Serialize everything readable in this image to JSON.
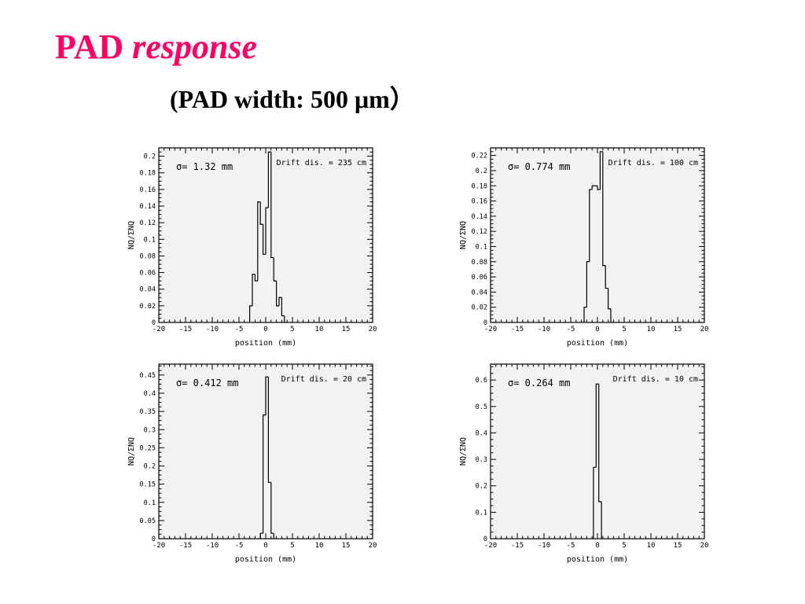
{
  "slide": {
    "title_main": "PAD",
    "title_italic": "response",
    "subtitle": "(PAD width: 500 μm）"
  },
  "chart_data": [
    {
      "type": "bar",
      "style": "step-histogram",
      "xlabel": "position (mm)",
      "ylabel": "NQ/ΣNQ",
      "annotation_sigma": "σ= 1.32 mm",
      "annotation_drift": "Drift dis. = 235 cm",
      "xlim": [
        -20,
        20
      ],
      "ylim": [
        0,
        0.21
      ],
      "x_ticks": [
        -20,
        -15,
        -10,
        -5,
        0,
        5,
        10,
        15,
        20
      ],
      "y_ticks": [
        0,
        0.02,
        0.04,
        0.06,
        0.08,
        0.1,
        0.12,
        0.14,
        0.16,
        0.18,
        0.2
      ],
      "y_tick_labels": [
        "0",
        "0.02",
        "0.04",
        "0.06",
        "0.08",
        "0.1",
        "0.12",
        "0.14",
        "0.16",
        "0.18",
        "0.2"
      ],
      "bins": [
        {
          "x0": -3,
          "x1": -2.5,
          "y": 0.02
        },
        {
          "x0": -2.5,
          "x1": -2,
          "y": 0.058
        },
        {
          "x0": -2,
          "x1": -1.5,
          "y": 0.05
        },
        {
          "x0": -1.5,
          "x1": -1,
          "y": 0.145
        },
        {
          "x0": -1,
          "x1": -0.5,
          "y": 0.118
        },
        {
          "x0": -0.5,
          "x1": 0,
          "y": 0.082
        },
        {
          "x0": 0,
          "x1": 0.5,
          "y": 0.138
        },
        {
          "x0": 0.5,
          "x1": 1,
          "y": 0.205
        },
        {
          "x0": 1,
          "x1": 1.5,
          "y": 0.078
        },
        {
          "x0": 1.5,
          "x1": 2,
          "y": 0.05
        },
        {
          "x0": 2,
          "x1": 2.5,
          "y": 0.02
        },
        {
          "x0": 2.5,
          "x1": 3,
          "y": 0.03
        },
        {
          "x0": 3,
          "x1": 3.5,
          "y": 0.008
        }
      ]
    },
    {
      "type": "bar",
      "style": "step-histogram",
      "xlabel": "position (mm)",
      "ylabel": "NQ/ΣNQ",
      "annotation_sigma": "σ= 0.774 mm",
      "annotation_drift": "Drift dis. = 100 cm",
      "xlim": [
        -20,
        20
      ],
      "ylim": [
        0,
        0.23
      ],
      "x_ticks": [
        -20,
        -15,
        -10,
        -5,
        0,
        5,
        10,
        15,
        20
      ],
      "y_ticks": [
        0,
        0.02,
        0.04,
        0.06,
        0.08,
        0.1,
        0.12,
        0.14,
        0.16,
        0.18,
        0.2,
        0.22
      ],
      "y_tick_labels": [
        "0",
        "0.02",
        "0.04",
        "0.06",
        "0.08",
        "0.1",
        "0.12",
        "0.14",
        "0.16",
        "0.18",
        "0.2",
        "0.22"
      ],
      "bins": [
        {
          "x0": -2.5,
          "x1": -2,
          "y": 0.02
        },
        {
          "x0": -2,
          "x1": -1.5,
          "y": 0.08
        },
        {
          "x0": -1.5,
          "x1": -1,
          "y": 0.175
        },
        {
          "x0": -1,
          "x1": -0.5,
          "y": 0.18
        },
        {
          "x0": -0.5,
          "x1": 0,
          "y": 0.18
        },
        {
          "x0": 0,
          "x1": 0.5,
          "y": 0.175
        },
        {
          "x0": 0.5,
          "x1": 1,
          "y": 0.225
        },
        {
          "x0": 1,
          "x1": 1.5,
          "y": 0.075
        },
        {
          "x0": 1.5,
          "x1": 2,
          "y": 0.045
        },
        {
          "x0": 2,
          "x1": 2.5,
          "y": 0.018
        }
      ]
    },
    {
      "type": "bar",
      "style": "step-histogram",
      "xlabel": "position (mm)",
      "ylabel": "NQ/ΣNQ",
      "annotation_sigma": "σ= 0.412 mm",
      "annotation_drift": "Drift dis. = 20 cm",
      "xlim": [
        -20,
        20
      ],
      "ylim": [
        0,
        0.48
      ],
      "x_ticks": [
        -20,
        -15,
        -10,
        -5,
        0,
        5,
        10,
        15,
        20
      ],
      "y_ticks": [
        0,
        0.05,
        0.1,
        0.15,
        0.2,
        0.25,
        0.3,
        0.35,
        0.4,
        0.45
      ],
      "y_tick_labels": [
        "0",
        "0.05",
        "0.1",
        "0.15",
        "0.2",
        "0.25",
        "0.3",
        "0.35",
        "0.4",
        "0.45"
      ],
      "bins": [
        {
          "x0": -1,
          "x1": -0.5,
          "y": 0.015
        },
        {
          "x0": -0.5,
          "x1": 0,
          "y": 0.34
        },
        {
          "x0": 0,
          "x1": 0.5,
          "y": 0.445
        },
        {
          "x0": 0.5,
          "x1": 1,
          "y": 0.155
        },
        {
          "x0": 1,
          "x1": 1.5,
          "y": 0.015
        }
      ]
    },
    {
      "type": "bar",
      "style": "step-histogram",
      "xlabel": "position (mm)",
      "ylabel": "NQ/ΣNQ",
      "annotation_sigma": "σ= 0.264 mm",
      "annotation_drift": "Drift dis. = 10 cm",
      "xlim": [
        -20,
        20
      ],
      "ylim": [
        0,
        0.66
      ],
      "x_ticks": [
        -20,
        -15,
        -10,
        -5,
        0,
        5,
        10,
        15,
        20
      ],
      "y_ticks": [
        0,
        0.1,
        0.2,
        0.3,
        0.4,
        0.5,
        0.6
      ],
      "y_tick_labels": [
        "0",
        "0.1",
        "0.2",
        "0.3",
        "0.4",
        "0.5",
        "0.6"
      ],
      "bins": [
        {
          "x0": -0.75,
          "x1": -0.25,
          "y": 0.27
        },
        {
          "x0": -0.25,
          "x1": 0.25,
          "y": 0.585
        },
        {
          "x0": 0.25,
          "x1": 0.75,
          "y": 0.14
        }
      ]
    }
  ],
  "colors": {
    "title": "#ff0066",
    "plot_background": "#f2f2f2",
    "histogram_line": "#000000"
  }
}
